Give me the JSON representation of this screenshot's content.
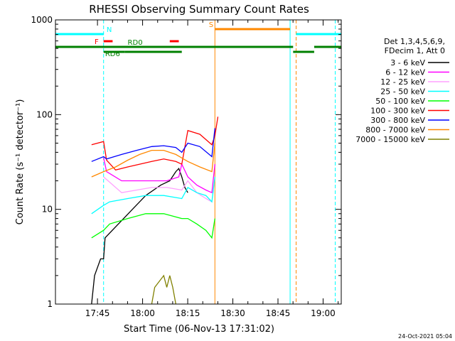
{
  "chart_data": {
    "type": "line",
    "title": "RHESSI Observing Summary Count Rates",
    "xlabel": "Start Time (06-Nov-13 17:31:02)",
    "ylabel": "Count Rate (s⁻¹ detector⁻¹)",
    "yscale": "log",
    "ylim": [
      1,
      1000
    ],
    "xlim_minutes_after_1731": [
      0,
      95
    ],
    "x_ticks": [
      "17:45",
      "18:00",
      "18:15",
      "18:30",
      "18:45",
      "19:00"
    ],
    "y_ticks": [
      "1",
      "10",
      "100",
      "1000"
    ],
    "footer_date": "24-Oct-2021 05:04",
    "legend": {
      "placement": "right",
      "header_lines": [
        "Det 1,3,4,5,6,9,",
        "FDecim 1, Att 0"
      ]
    },
    "series": [
      {
        "name": "3 - 6 keV",
        "color": "#000000",
        "x": [
          12,
          13,
          15,
          16,
          16.5,
          30,
          35,
          38,
          40,
          41,
          42,
          43,
          44
        ],
        "y": [
          1,
          2,
          3,
          3,
          5,
          14,
          18,
          20,
          25,
          27,
          22,
          17,
          15
        ]
      },
      {
        "name": "6 - 12 keV",
        "color": "#ff00ff",
        "x": [
          16,
          17,
          22,
          27,
          32,
          37,
          41,
          42,
          44,
          47,
          50,
          52,
          53
        ],
        "y": [
          35,
          25,
          20,
          20,
          20,
          20,
          22,
          30,
          22,
          18,
          16,
          15,
          30
        ]
      },
      {
        "name": "12 - 25 keV",
        "color": "#ffa0ff",
        "x": [
          16,
          22,
          27,
          32,
          37,
          42,
          44,
          47,
          50,
          52
        ],
        "y": [
          22,
          15,
          16,
          17,
          17,
          16,
          20,
          15,
          13,
          12
        ]
      },
      {
        "name": "25 - 50 keV",
        "color": "#00ffff",
        "x": [
          12,
          16,
          18,
          24,
          30,
          36,
          42,
          44,
          47,
          50,
          52,
          53
        ],
        "y": [
          9,
          11,
          12,
          13,
          14,
          14,
          13,
          17,
          15,
          14,
          12,
          22
        ]
      },
      {
        "name": "50 - 100 keV",
        "color": "#00ff00",
        "x": [
          12,
          16,
          18,
          24,
          30,
          36,
          42,
          44,
          47,
          50,
          52,
          53
        ],
        "y": [
          5,
          6,
          7,
          8,
          9,
          9,
          8,
          8,
          7,
          6,
          5,
          8
        ]
      },
      {
        "name": "100 - 300 keV",
        "color": "#ff0000",
        "x": [
          12,
          16,
          17,
          20,
          24,
          28,
          32,
          36,
          40,
          42,
          44,
          48,
          52,
          53,
          54
        ],
        "y": [
          48,
          52,
          33,
          26,
          28,
          30,
          32,
          34,
          32,
          30,
          68,
          62,
          48,
          60,
          95
        ]
      },
      {
        "name": "300 - 800 keV",
        "color": "#0000ff",
        "x": [
          12,
          16,
          17,
          22,
          27,
          32,
          36,
          40,
          42,
          44,
          48,
          52,
          53
        ],
        "y": [
          32,
          36,
          34,
          38,
          42,
          46,
          47,
          45,
          40,
          50,
          46,
          36,
          72
        ]
      },
      {
        "name": "800 - 7000 keV",
        "color": "#ff8800",
        "x": [
          12,
          16,
          20,
          24,
          28,
          32,
          36,
          40,
          44,
          48,
          52,
          53
        ],
        "y": [
          22,
          25,
          28,
          33,
          38,
          42,
          42,
          38,
          32,
          28,
          25,
          50
        ]
      },
      {
        "name": "7000 - 15000 keV",
        "color": "#808000",
        "x": [
          32,
          33,
          36,
          37,
          38,
          39,
          40
        ],
        "y": [
          1,
          1.5,
          2,
          1.5,
          2,
          1.5,
          1
        ]
      }
    ],
    "flags": [
      {
        "label": "N",
        "color": "#00ffff",
        "segments": [
          [
            0,
            16
          ],
          [
            80,
            95
          ]
        ]
      },
      {
        "label": "F",
        "color": "#ff0000",
        "segments": [
          [
            16,
            19
          ],
          [
            38,
            41
          ]
        ]
      },
      {
        "label": "S",
        "color": "#ff8800",
        "segments": [
          [
            53,
            78
          ]
        ]
      },
      {
        "label": "RD0",
        "color": "#008000",
        "segments": [
          [
            0,
            79
          ],
          [
            86,
            95
          ]
        ]
      },
      {
        "label": "RD6",
        "color": "#008000",
        "segments": [
          [
            16,
            23
          ],
          [
            23,
            42
          ],
          [
            79,
            86
          ]
        ]
      }
    ],
    "vertical_markers": [
      {
        "x": 0,
        "color": "#00ffff",
        "style": "solid"
      },
      {
        "x": 16,
        "color": "#00ffff",
        "style": "dashed"
      },
      {
        "x": 53,
        "color": "#ff8800",
        "style": "solid"
      },
      {
        "x": 78,
        "color": "#00ffff",
        "style": "solid"
      },
      {
        "x": 80,
        "color": "#ff8800",
        "style": "dashed"
      },
      {
        "x": 93,
        "color": "#00ffff",
        "style": "dashed"
      }
    ]
  }
}
